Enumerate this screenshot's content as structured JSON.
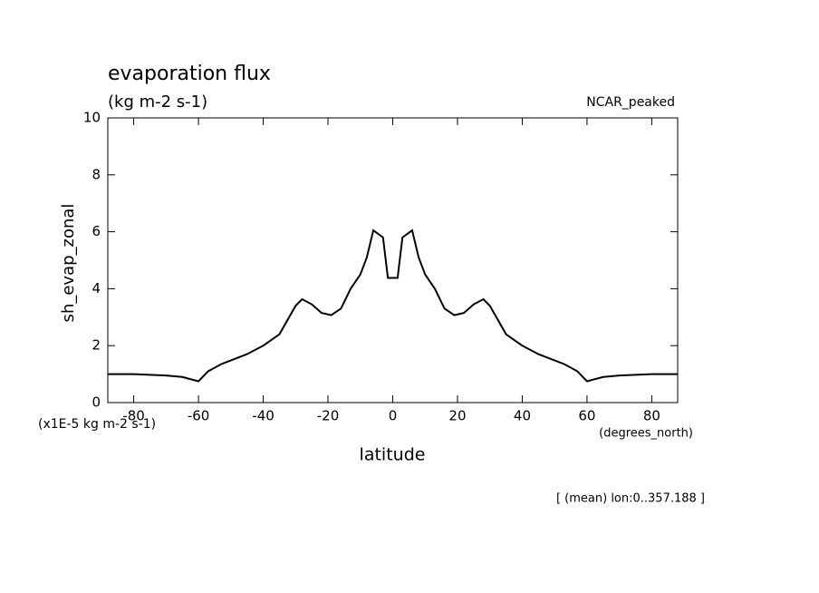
{
  "chart_data": {
    "type": "line",
    "title": "evaporation flux",
    "subtitle": "(kg m-2 s-1)",
    "dataset_label": "NCAR_peaked",
    "ylabel": "sh_evap_zonal",
    "yunits": "(x1E-5 kg m-2 s-1)",
    "xlabel": "latitude",
    "xunits": "(degrees_north)",
    "footer": "[ (mean) lon:0..357.188 ]",
    "x": [
      -88,
      -80,
      -70,
      -65,
      -60,
      -57,
      -53,
      -45,
      -40,
      -35,
      -30,
      -28,
      -25,
      -22,
      -19,
      -16,
      -13,
      -10,
      -8,
      -6,
      -3,
      -1.5,
      1.5,
      3,
      6,
      8,
      10,
      13,
      16,
      19,
      22,
      25,
      28,
      30,
      35,
      40,
      45,
      53,
      57,
      60,
      65,
      70,
      80,
      88
    ],
    "series": [
      {
        "color": "#000000",
        "values": [
          1.0,
          1.0,
          0.95,
          0.9,
          0.75,
          1.1,
          1.35,
          1.7,
          2.0,
          2.4,
          3.4,
          3.63,
          3.45,
          3.15,
          3.07,
          3.3,
          4.0,
          4.5,
          5.1,
          6.05,
          5.8,
          4.38,
          4.38,
          5.8,
          6.05,
          5.1,
          4.5,
          4.0,
          3.3,
          3.07,
          3.15,
          3.45,
          3.63,
          3.4,
          2.4,
          2.0,
          1.7,
          1.35,
          1.1,
          0.75,
          0.9,
          0.95,
          1.0,
          1.0
        ]
      }
    ],
    "xlim": [
      -88,
      88
    ],
    "ylim": [
      0,
      10
    ],
    "xticks": [
      -80,
      -60,
      -40,
      -20,
      0,
      20,
      40,
      60,
      80
    ],
    "yticks": [
      0,
      2,
      4,
      6,
      8,
      10
    ]
  }
}
